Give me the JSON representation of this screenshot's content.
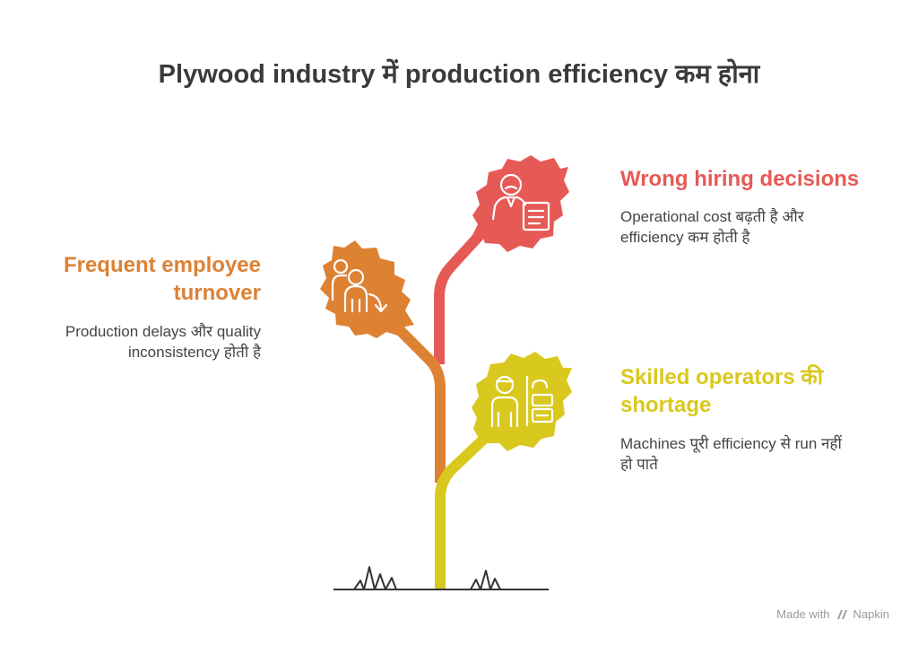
{
  "title": "Plywood industry में production efficiency कम होना",
  "colors": {
    "red": "#e65a56",
    "orange": "#dd8133",
    "yellow": "#d9c81d",
    "text": "#444444",
    "ground": "#333333"
  },
  "items": [
    {
      "heading": "Wrong hiring decisions",
      "description_line1": "Operational cost बढ़ती है और",
      "description_line2": "efficiency कम होती है",
      "icon": "person-with-document-icon",
      "color": "#e65a56"
    },
    {
      "heading_line1": "Frequent employee",
      "heading_line2": "turnover",
      "description_line1": "Production delays और quality",
      "description_line2": "inconsistency होती है",
      "icon": "people-leaving-icon",
      "color": "#dd8133"
    },
    {
      "heading_line1": "Skilled operators की",
      "heading_line2": "shortage",
      "description_line1": "Machines पूरी efficiency से run नहीं",
      "description_line2": "हो पाते",
      "icon": "operator-machine-icon",
      "color": "#d9c81d"
    }
  ],
  "watermark": {
    "made_with": "Made with",
    "brand": "Napkin",
    "icon": "napkin-logo-icon"
  }
}
